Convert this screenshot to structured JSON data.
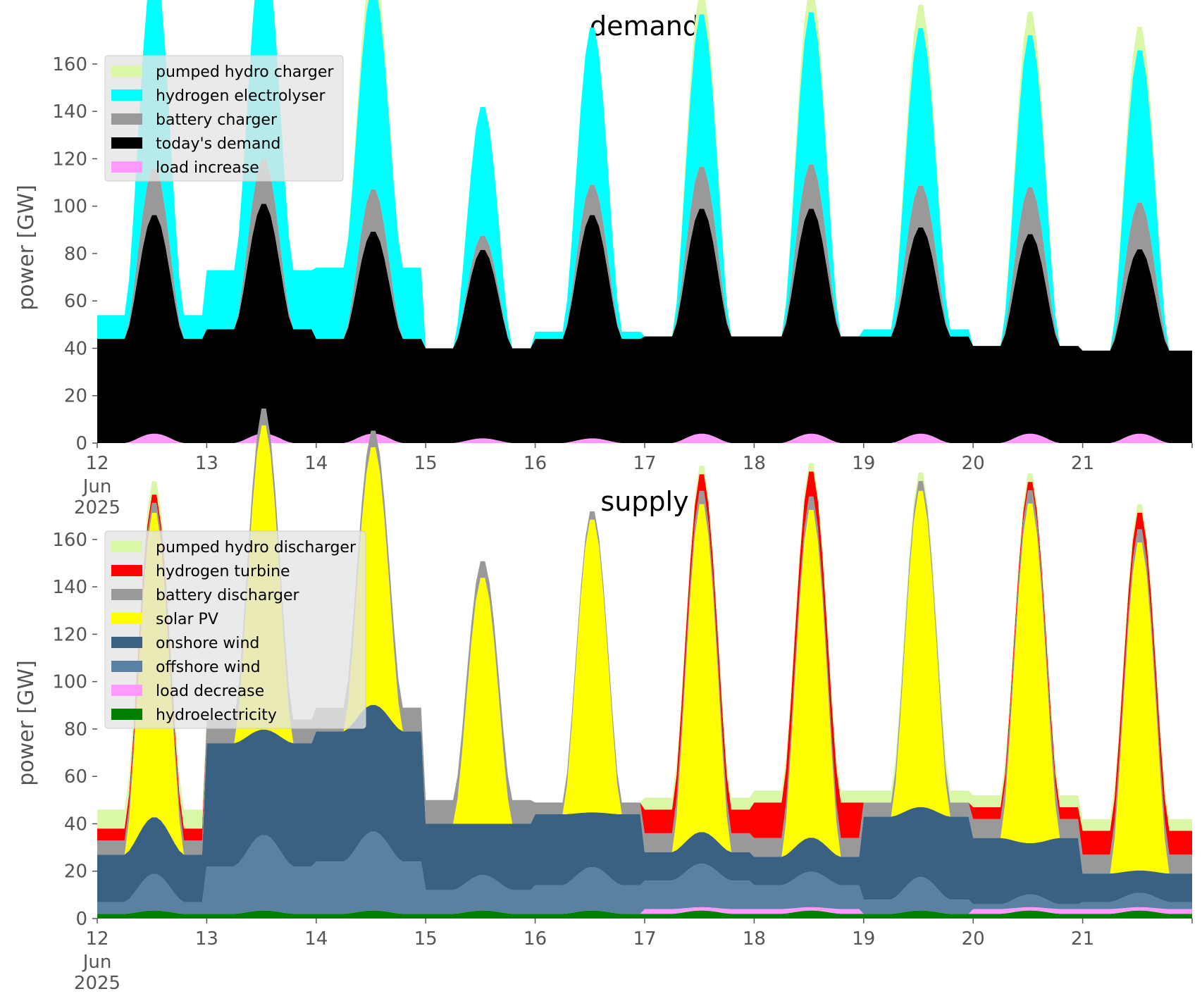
{
  "chart_data": [
    {
      "type": "area",
      "title": "demand",
      "xlabel": "",
      "ylabel": "power [GW]",
      "ylim": [
        0,
        165
      ],
      "yticks": [
        "0",
        "20",
        "40",
        "60",
        "80",
        "100",
        "120",
        "140",
        "160"
      ],
      "xticks": [
        "12",
        "13",
        "14",
        "15",
        "16",
        "17",
        "18",
        "19",
        "20",
        "21"
      ],
      "xtick_sub": [
        "Jun",
        "2025"
      ],
      "x": [
        "Jun 12",
        "Jun 13",
        "Jun 14",
        "Jun 15",
        "Jun 16",
        "Jun 17",
        "Jun 18",
        "Jun 19",
        "Jun 20",
        "Jun 21",
        "Jun 22"
      ],
      "grid": false,
      "legend_position": "top-left",
      "legend": [
        {
          "name": "pumped hydro charger",
          "color": "#d9f7a7"
        },
        {
          "name": "hydrogen electrolyser",
          "color": "#00ffff"
        },
        {
          "name": "battery charger",
          "color": "#999999"
        },
        {
          "name": "today's demand",
          "color": "#000000"
        },
        {
          "name": "load increase",
          "color": "#ff99ff"
        }
      ],
      "series_daily": [
        {
          "name": "pumped hydro charger",
          "color": "#d9f7a7",
          "peak": [
            0,
            0,
            10,
            0,
            0,
            10,
            10,
            10,
            10,
            10
          ],
          "base": [
            0,
            0,
            0,
            0,
            0,
            0,
            0,
            0,
            0,
            0
          ]
        },
        {
          "name": "hydrogen electrolyser",
          "color": "#00ffff",
          "peak": [
            80,
            75,
            65,
            55,
            65,
            65,
            65,
            65,
            65,
            65
          ],
          "base": [
            10,
            25,
            30,
            0,
            3,
            0,
            0,
            3,
            0,
            0
          ]
        },
        {
          "name": "battery charger",
          "color": "#999999",
          "peak": [
            20,
            19,
            18,
            6,
            13,
            18,
            19,
            18,
            20,
            20
          ],
          "base": [
            0,
            0,
            0,
            0,
            0,
            0,
            0,
            0,
            0,
            0
          ]
        },
        {
          "name": "today's demand",
          "color": "#000000",
          "peak": [
            62,
            64,
            55,
            52,
            64,
            64,
            64,
            56,
            56,
            51
          ],
          "base": [
            44,
            48,
            44,
            40,
            44,
            45,
            45,
            45,
            41,
            39
          ]
        },
        {
          "name": "load increase",
          "color": "#ff99ff",
          "peak": [
            4,
            4,
            4,
            2,
            2,
            4,
            4,
            4,
            4,
            4
          ],
          "base": [
            0,
            0,
            0,
            0,
            0,
            0,
            0,
            0,
            0,
            0
          ]
        }
      ]
    },
    {
      "type": "area",
      "title": "supply",
      "xlabel": "",
      "ylabel": "power [GW]",
      "ylim": [
        0,
        165
      ],
      "yticks": [
        "0",
        "20",
        "40",
        "60",
        "80",
        "100",
        "120",
        "140",
        "160"
      ],
      "xticks": [
        "12",
        "13",
        "14",
        "15",
        "16",
        "17",
        "18",
        "19",
        "20",
        "21"
      ],
      "xtick_sub": [
        "Jun",
        "2025"
      ],
      "x": [
        "Jun 12",
        "Jun 13",
        "Jun 14",
        "Jun 15",
        "Jun 16",
        "Jun 17",
        "Jun 18",
        "Jun 19",
        "Jun 20",
        "Jun 21",
        "Jun 22"
      ],
      "grid": false,
      "legend_position": "top-left",
      "legend": [
        {
          "name": "pumped hydro discharger",
          "color": "#d9f7a7"
        },
        {
          "name": "hydrogen turbine",
          "color": "#ff0000"
        },
        {
          "name": "battery discharger",
          "color": "#999999"
        },
        {
          "name": "solar PV",
          "color": "#ffff00"
        },
        {
          "name": "onshore wind",
          "color": "#3b6182"
        },
        {
          "name": "offshore wind",
          "color": "#5b81a2"
        },
        {
          "name": "load decrease",
          "color": "#ff99ff"
        },
        {
          "name": "hydroelectricity",
          "color": "#008000"
        }
      ],
      "series_daily": [
        {
          "name": "hydroelectricity",
          "color": "#008000",
          "peak": [
            2,
            2,
            2,
            2,
            2,
            2,
            2,
            2,
            2,
            2
          ],
          "base": [
            2,
            2,
            2,
            2,
            2,
            2,
            2,
            2,
            2,
            2
          ]
        },
        {
          "name": "load decrease",
          "color": "#ff99ff",
          "peak": [
            0,
            0,
            0,
            0,
            0,
            0,
            0,
            0,
            0,
            0
          ],
          "base": [
            0,
            0,
            0,
            0,
            0,
            2,
            2,
            0,
            2,
            2
          ]
        },
        {
          "name": "offshore wind",
          "color": "#5b81a2",
          "peak": [
            12,
            18,
            18,
            8,
            10,
            10,
            8,
            10,
            4,
            4
          ],
          "base": [
            5,
            20,
            22,
            10,
            12,
            12,
            10,
            6,
            2,
            3
          ]
        },
        {
          "name": "onshore wind",
          "color": "#3b6182",
          "peak": [
            10,
            8,
            15,
            2,
            2,
            5,
            6,
            5,
            2,
            1
          ],
          "base": [
            20,
            52,
            55,
            28,
            30,
            12,
            12,
            35,
            28,
            12
          ]
        },
        {
          "name": "solar PV",
          "color": "#ffff00",
          "peak": [
            130,
            130,
            110,
            105,
            125,
            140,
            140,
            135,
            145,
            140
          ],
          "base": [
            0,
            0,
            0,
            0,
            0,
            0,
            0,
            0,
            0,
            0
          ]
        },
        {
          "name": "battery discharger",
          "color": "#999999",
          "peak": [
            0,
            0,
            0,
            0,
            0,
            0,
            0,
            0,
            0,
            0
          ],
          "base": [
            6,
            10,
            10,
            10,
            5,
            8,
            8,
            6,
            8,
            8
          ]
        },
        {
          "name": "hydrogen turbine",
          "color": "#ff0000",
          "peak": [
            0,
            0,
            0,
            0,
            0,
            0,
            0,
            0,
            0,
            0
          ],
          "base": [
            5,
            0,
            0,
            0,
            0,
            10,
            15,
            0,
            5,
            10
          ]
        },
        {
          "name": "pumped hydro discharger",
          "color": "#d9f7a7",
          "peak": [
            0,
            0,
            0,
            0,
            0,
            0,
            0,
            0,
            0,
            0
          ],
          "base": [
            8,
            0,
            0,
            0,
            0,
            5,
            5,
            5,
            5,
            5
          ]
        }
      ]
    }
  ]
}
